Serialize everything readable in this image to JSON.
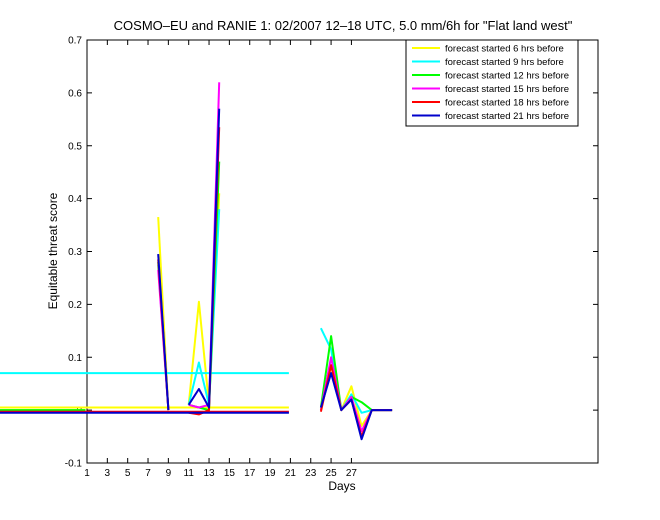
{
  "chart_data": {
    "type": "line",
    "title": "COSMO–EU and RANIE 1: 02/2007 12–18 UTC, 5.0 mm/6h for \"Flat land west\"",
    "xlabel": "Days",
    "ylabel": "Equitable threat score",
    "xlim": [
      1,
      29
    ],
    "ylim": [
      -0.1,
      0.7
    ],
    "x_ticks": [
      1,
      3,
      5,
      7,
      9,
      11,
      13,
      15,
      17,
      19,
      21,
      23,
      25,
      27
    ],
    "x_tick_labels": [
      "1",
      "3",
      "5",
      "7",
      "9",
      "11",
      "13",
      "15",
      "17",
      "19",
      "21",
      "23",
      "25",
      "27"
    ],
    "y_ticks": [
      -0.1,
      0,
      0.1,
      0.2,
      0.3,
      0.4,
      0.5,
      0.6,
      0.7
    ],
    "y_tick_labels": [
      "-0.1",
      "0",
      "0.1",
      "0.2",
      "0.3",
      "0.4",
      "0.5",
      "0.6",
      "0.7"
    ],
    "grid": false,
    "legend_position": "top-right",
    "x": [
      1,
      2,
      3,
      4,
      5,
      6,
      7,
      8,
      9,
      10,
      11,
      12,
      13,
      14,
      15,
      16,
      17,
      18,
      19,
      20,
      21,
      22,
      23,
      24,
      25,
      26,
      27,
      28,
      29,
      30,
      31
    ],
    "series": [
      {
        "name": "forecast started  6 hrs before",
        "color": "#ffff00",
        "values": [
          0,
          null,
          null,
          null,
          null,
          null,
          null,
          0.365,
          0,
          null,
          0.01,
          0.205,
          0.01,
          0.41,
          null,
          null,
          null,
          null,
          null,
          null,
          0.005,
          null,
          null,
          0,
          0.085,
          0,
          0.045,
          -0.03,
          0,
          0,
          0
        ]
      },
      {
        "name": "forecast started  9 hrs before",
        "color": "#00ffff",
        "values": [
          null,
          null,
          null,
          null,
          null,
          null,
          null,
          0.275,
          0,
          null,
          0.01,
          0.09,
          0.01,
          0.38,
          null,
          null,
          null,
          null,
          null,
          null,
          0.07,
          null,
          null,
          0.155,
          0.115,
          0,
          0.03,
          -0.005,
          0,
          0,
          0
        ]
      },
      {
        "name": "forecast started 12 hrs before",
        "color": "#00ff00",
        "values": [
          0,
          null,
          null,
          null,
          null,
          null,
          null,
          0.28,
          0,
          null,
          0.01,
          0.005,
          0,
          0.47,
          null,
          null,
          null,
          null,
          null,
          null,
          null,
          null,
          null,
          0.005,
          0.14,
          0,
          0.025,
          0.015,
          0,
          0,
          0
        ]
      },
      {
        "name": "forecast started 15 hrs before",
        "color": "#ff00ff",
        "values": [
          null,
          null,
          null,
          null,
          null,
          null,
          null,
          0.265,
          0,
          null,
          0.01,
          0.005,
          0.01,
          0.62,
          null,
          null,
          null,
          null,
          null,
          null,
          null,
          null,
          null,
          0,
          0.1,
          0,
          0.025,
          -0.04,
          0,
          0,
          0
        ]
      },
      {
        "name": "forecast started 18 hrs before",
        "color": "#ff0000",
        "values": [
          null,
          null,
          null,
          null,
          null,
          null,
          null,
          0.285,
          0,
          null,
          -0.005,
          -0.008,
          0,
          0.535,
          null,
          null,
          null,
          null,
          null,
          null,
          -0.003,
          null,
          null,
          -0.003,
          0.085,
          0,
          0.02,
          -0.05,
          0,
          0,
          0
        ]
      },
      {
        "name": "forecast started 21 hrs before",
        "color": "#0000cc",
        "values": [
          null,
          null,
          null,
          null,
          null,
          null,
          null,
          0.295,
          0,
          null,
          0.01,
          0.04,
          0.005,
          0.57,
          null,
          null,
          null,
          null,
          null,
          null,
          -0.005,
          null,
          null,
          0.005,
          0.07,
          0,
          0.02,
          -0.055,
          0,
          0,
          0
        ]
      }
    ]
  }
}
